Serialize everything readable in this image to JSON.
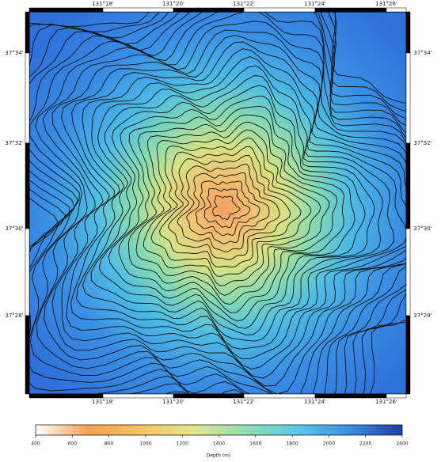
{
  "map": {
    "lon_labels": [
      "131°18'",
      "131°20'",
      "131°22'",
      "131°24'",
      "131°26'"
    ],
    "lat_labels": [
      "37°34'",
      "37°32'",
      "37°30'",
      "37°28'"
    ],
    "colorbar": {
      "label": "Depth (m)",
      "lim": [
        400,
        2400
      ],
      "ticks": [
        400,
        600,
        800,
        1000,
        1200,
        1400,
        1600,
        1800,
        2000,
        2200,
        2400
      ],
      "colors": [
        "#ffffff",
        "#f6a050",
        "#f3c460",
        "#e6e48a",
        "#8fe0b0",
        "#5cc8e8",
        "#3a8ee0",
        "#1f3ea8"
      ]
    }
  }
}
